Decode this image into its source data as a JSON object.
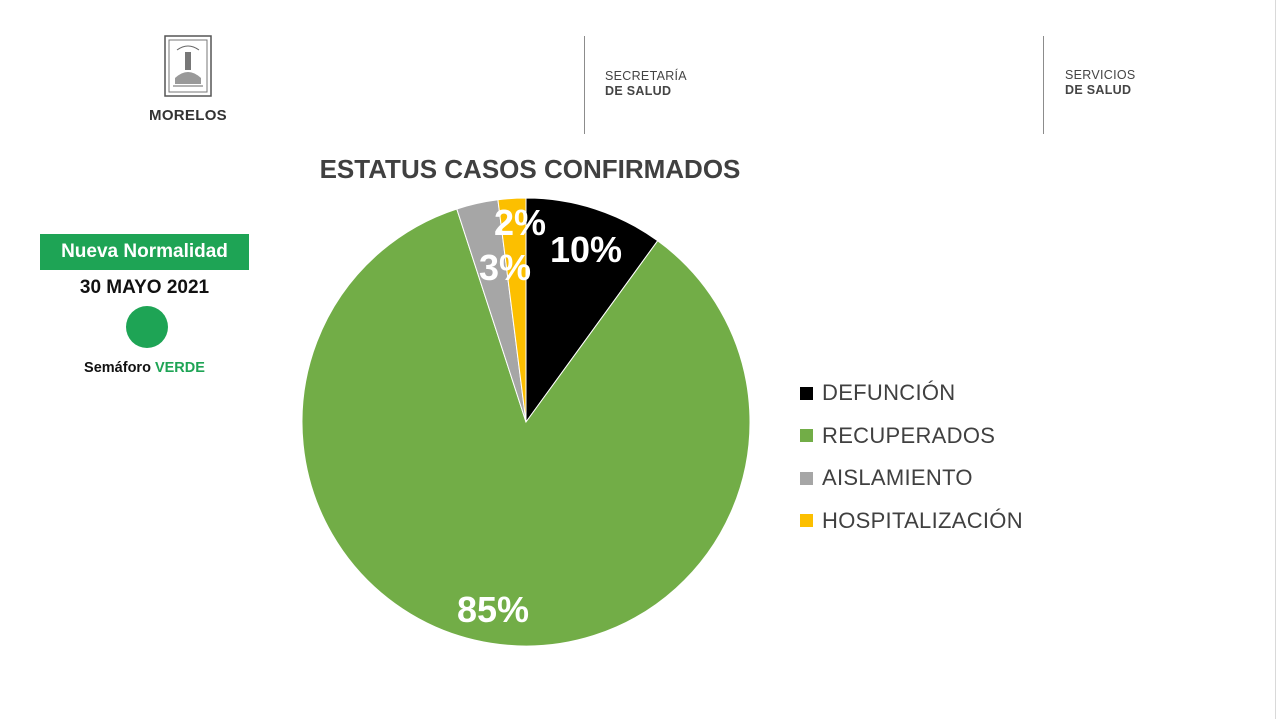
{
  "header": {
    "logo_text": "MORELOS",
    "dept1": {
      "line1": "SECRETARÍA",
      "line2": "DE SALUD"
    },
    "dept2": {
      "line1": "SERVICIOS",
      "line2": "DE SALUD"
    }
  },
  "status": {
    "badge": "Nueva Normalidad",
    "date": "30 MAYO 2021",
    "semaforo_label": "Semáforo",
    "semaforo_value": "VERDE",
    "semaforo_color": "#1ea455"
  },
  "chart_data": {
    "type": "pie",
    "title": "ESTATUS CASOS CONFIRMADOS",
    "legend_position": "right",
    "slices": [
      {
        "label": "DEFUNCIÓN",
        "value": 10,
        "display": "10%",
        "color": "#000000"
      },
      {
        "label": "RECUPERADOS",
        "value": 85,
        "display": "85%",
        "color": "#72ad47"
      },
      {
        "label": "AISLAMIENTO",
        "value": 3,
        "display": "3%",
        "color": "#a6a6a6"
      },
      {
        "label": "HOSPITALIZACIÓN",
        "value": 2,
        "display": "2%",
        "color": "#fcbf00"
      }
    ]
  }
}
